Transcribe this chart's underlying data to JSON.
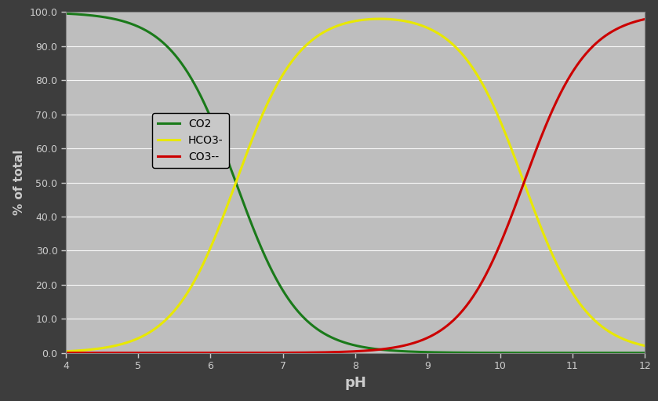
{
  "title": "",
  "xlabel": "pH",
  "ylabel": "% of total",
  "xlim": [
    4,
    12
  ],
  "ylim": [
    0,
    100
  ],
  "xticks": [
    4,
    5,
    6,
    7,
    8,
    9,
    10,
    11,
    12
  ],
  "yticks": [
    0.0,
    10.0,
    20.0,
    30.0,
    40.0,
    50.0,
    60.0,
    70.0,
    80.0,
    90.0,
    100.0
  ],
  "background_color": "#bebebe",
  "outer_background": "#3d3d3d",
  "grid_color": "#ffffff",
  "series": [
    {
      "label": "CO2",
      "color": "#1a7a1a",
      "pKa1": 6.35,
      "pKa2": 10.33
    },
    {
      "label": "HCO3-",
      "color": "#e8e800",
      "pKa1": 6.35,
      "pKa2": 10.33
    },
    {
      "label": "CO3--",
      "color": "#cc0000",
      "pKa1": 6.35,
      "pKa2": 10.33
    }
  ],
  "legend_facecolor": "#c8c8c8",
  "legend_edgecolor": "#000000",
  "xlabel_fontsize": 13,
  "ylabel_fontsize": 11,
  "tick_fontsize": 9,
  "legend_fontsize": 10,
  "line_width": 2.2
}
